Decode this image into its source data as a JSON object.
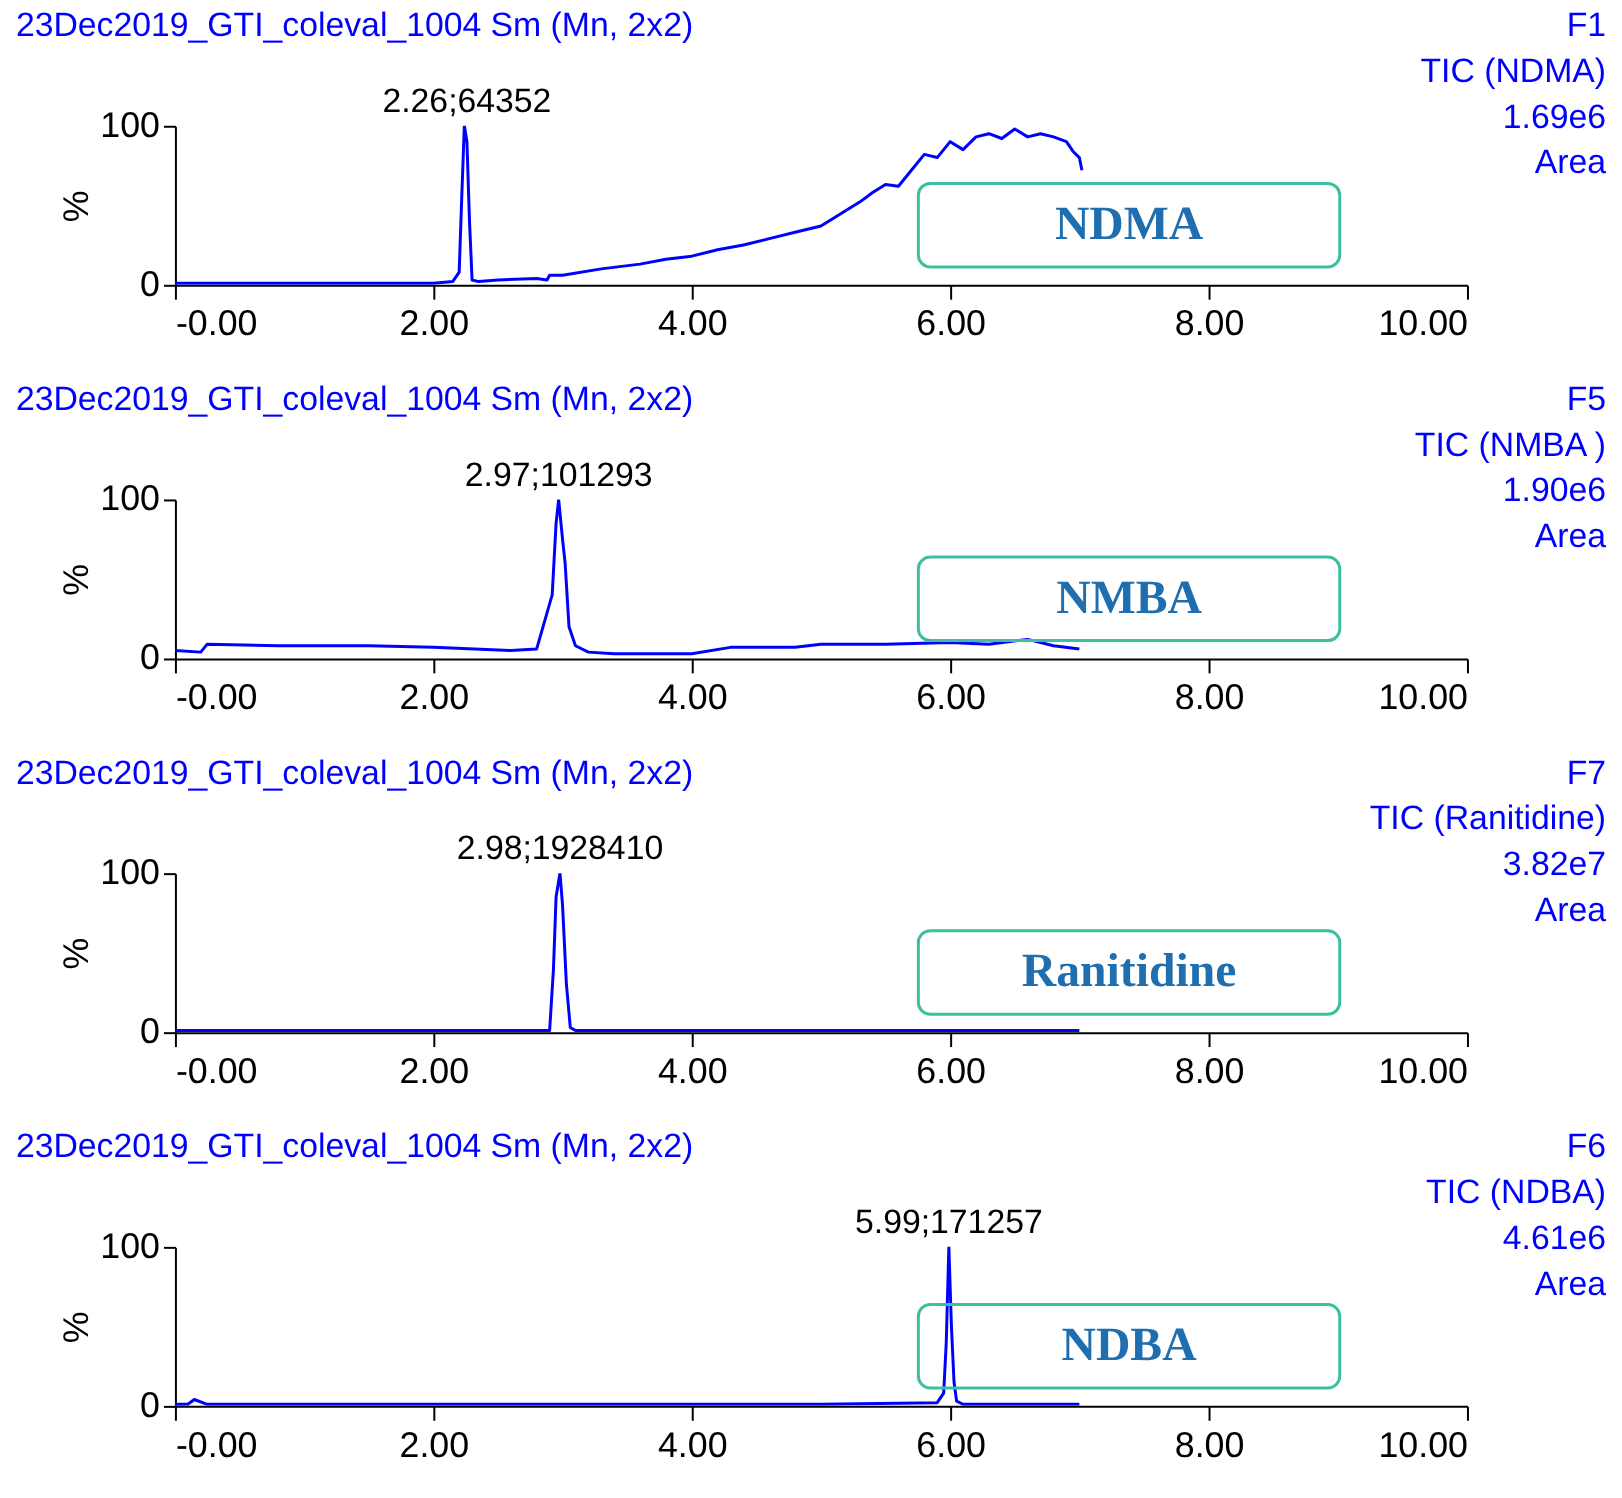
{
  "chart_data": [
    {
      "type": "line",
      "title": "23Dec2019_GTI_coleval_1004 Sm (Mn, 2x2)",
      "ylabel": "%",
      "color": "#0000ff",
      "xlim": [
        0,
        10
      ],
      "xticks": [
        {
          "value": 0,
          "label": "-0.00"
        },
        {
          "value": 2,
          "label": "2.00"
        },
        {
          "value": 4,
          "label": "4.00"
        },
        {
          "value": 6,
          "label": "6.00"
        },
        {
          "value": 8,
          "label": "8.00"
        },
        {
          "value": 10,
          "label": "10.00"
        }
      ],
      "ylim": [
        0,
        100
      ],
      "yticks": [
        0,
        100
      ],
      "annotations": [
        "F1",
        "TIC (NDMA)",
        "1.69e6",
        "Area",
        "NDMA",
        {
          "text": "2.26;64352",
          "x": 2.26,
          "y": 100
        }
      ],
      "x": [
        0,
        0.5,
        1.0,
        1.5,
        2.0,
        2.15,
        2.2,
        2.22,
        2.24,
        2.26,
        2.28,
        2.3,
        2.35,
        2.5,
        2.8,
        2.88,
        2.9,
        3.0,
        3.3,
        3.6,
        3.8,
        4.0,
        4.2,
        4.4,
        4.6,
        4.8,
        5.0,
        5.1,
        5.2,
        5.3,
        5.4,
        5.5,
        5.6,
        5.7,
        5.8,
        5.9,
        6.0,
        6.1,
        6.2,
        6.3,
        6.4,
        6.5,
        6.6,
        6.7,
        6.8,
        6.9,
        6.95,
        7.0,
        7.02
      ],
      "values": [
        1,
        1,
        1,
        1,
        1,
        2,
        8,
        55,
        100,
        90,
        40,
        3,
        2,
        3,
        4,
        3,
        6,
        6,
        10,
        13,
        16,
        18,
        22,
        25,
        29,
        33,
        37,
        42,
        47,
        52,
        58,
        63,
        62,
        72,
        82,
        80,
        90,
        85,
        93,
        95,
        92,
        98,
        93,
        95,
        93,
        90,
        84,
        80,
        72
      ]
    },
    {
      "type": "line",
      "title": "23Dec2019_GTI_coleval_1004 Sm (Mn, 2x2)",
      "ylabel": "%",
      "color": "#0000ff",
      "xlim": [
        0,
        10
      ],
      "xticks": [
        {
          "value": 0,
          "label": "-0.00"
        },
        {
          "value": 2,
          "label": "2.00"
        },
        {
          "value": 4,
          "label": "4.00"
        },
        {
          "value": 6,
          "label": "6.00"
        },
        {
          "value": 8,
          "label": "8.00"
        },
        {
          "value": 10,
          "label": "10.00"
        }
      ],
      "ylim": [
        0,
        100
      ],
      "yticks": [
        0,
        100
      ],
      "annotations": [
        "F5",
        "TIC (NMBA )",
        "1.90e6",
        "Area",
        "NMBA",
        {
          "text": "2.97;101293",
          "x": 2.97,
          "y": 100
        }
      ],
      "x": [
        0,
        0.2,
        0.25,
        0.8,
        1.5,
        2.0,
        2.6,
        2.8,
        2.92,
        2.95,
        2.97,
        3.0,
        3.02,
        3.05,
        3.1,
        3.2,
        3.4,
        4.0,
        4.3,
        4.8,
        5.0,
        5.5,
        6.0,
        6.3,
        6.6,
        6.8,
        7.0
      ],
      "values": [
        5,
        4,
        9,
        8,
        8,
        7,
        5,
        6,
        40,
        85,
        100,
        75,
        60,
        20,
        8,
        4,
        3,
        3,
        7,
        7,
        9,
        9,
        10,
        9,
        12,
        8,
        6
      ]
    },
    {
      "type": "line",
      "title": "23Dec2019_GTI_coleval_1004 Sm (Mn, 2x2)",
      "ylabel": "%",
      "color": "#0000ff",
      "xlim": [
        0,
        10
      ],
      "xticks": [
        {
          "value": 0,
          "label": "-0.00"
        },
        {
          "value": 2,
          "label": "2.00"
        },
        {
          "value": 4,
          "label": "4.00"
        },
        {
          "value": 6,
          "label": "6.00"
        },
        {
          "value": 8,
          "label": "8.00"
        },
        {
          "value": 10,
          "label": "10.00"
        }
      ],
      "ylim": [
        0,
        100
      ],
      "yticks": [
        0,
        100
      ],
      "annotations": [
        "F7",
        "TIC (Ranitidine)",
        "3.82e7",
        "Area",
        "Ranitidine",
        {
          "text": "2.98;1928410",
          "x": 2.98,
          "y": 100
        }
      ],
      "x": [
        0,
        1.0,
        2.0,
        2.9,
        2.93,
        2.95,
        2.98,
        3.0,
        3.03,
        3.06,
        3.1,
        4.0,
        5.0,
        6.0,
        7.0
      ],
      "values": [
        1,
        1,
        1,
        1,
        40,
        85,
        100,
        80,
        30,
        3,
        1,
        1,
        1,
        1,
        1
      ]
    },
    {
      "type": "line",
      "title": "23Dec2019_GTI_coleval_1004 Sm (Mn, 2x2)",
      "ylabel": "%",
      "color": "#0000ff",
      "xlim": [
        0,
        10
      ],
      "xticks": [
        {
          "value": 0,
          "label": "-0.00"
        },
        {
          "value": 2,
          "label": "2.00"
        },
        {
          "value": 4,
          "label": "4.00"
        },
        {
          "value": 6,
          "label": "6.00"
        },
        {
          "value": 8,
          "label": "8.00"
        },
        {
          "value": 10,
          "label": "10.00"
        }
      ],
      "ylim": [
        0,
        100
      ],
      "yticks": [
        0,
        100
      ],
      "annotations": [
        "F6",
        "TIC (NDBA)",
        "4.61e6",
        "Area",
        "NDBA",
        {
          "text": "5.99;171257",
          "x": 5.99,
          "y": 100
        }
      ],
      "x": [
        0,
        0.1,
        0.15,
        0.25,
        1.0,
        2.0,
        3.0,
        4.0,
        5.0,
        5.9,
        5.95,
        5.97,
        5.99,
        6.01,
        6.03,
        6.05,
        6.1,
        7.0
      ],
      "values": [
        1,
        1,
        4,
        1,
        1,
        1,
        1,
        1,
        1,
        2,
        8,
        40,
        100,
        50,
        15,
        3,
        1,
        1
      ]
    }
  ]
}
